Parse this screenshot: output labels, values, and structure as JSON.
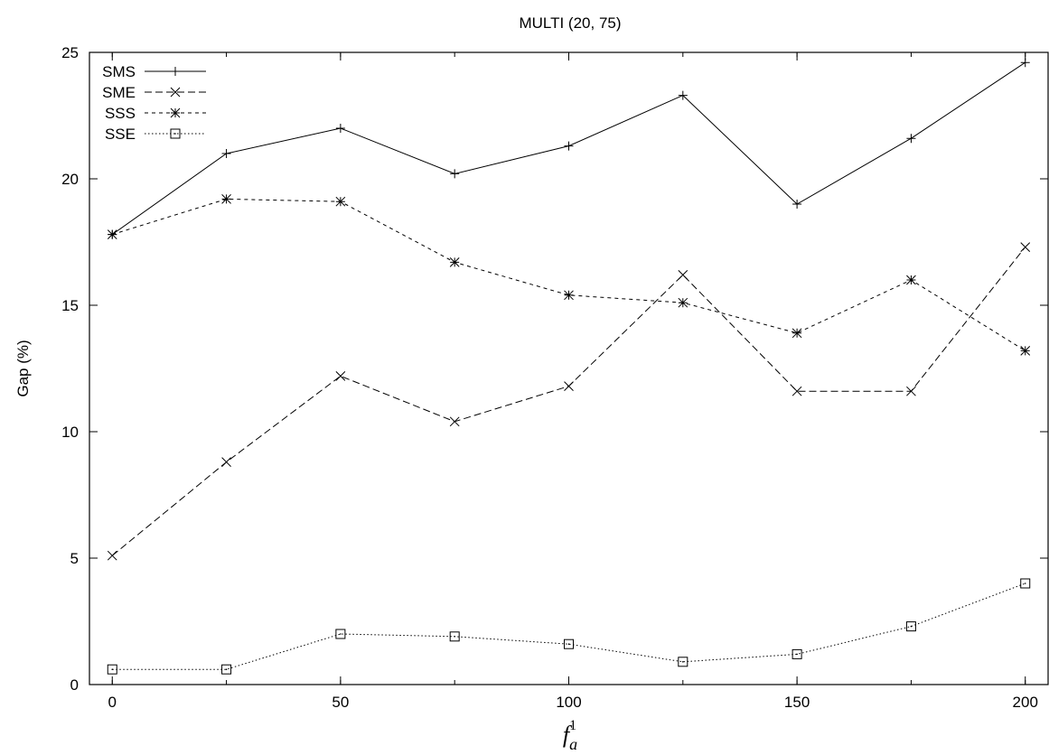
{
  "chart_data": {
    "type": "line",
    "title": "MULTI (20, 75)",
    "xlabel": {
      "base": "f",
      "superscript": "1",
      "subscript": "a"
    },
    "ylabel": "Gap (%)",
    "x": [
      0,
      25,
      50,
      75,
      100,
      125,
      150,
      175,
      200
    ],
    "xlim": [
      -5,
      205
    ],
    "ylim": [
      0,
      25
    ],
    "xticks": [
      "0",
      "50",
      "100",
      "150",
      "200"
    ],
    "yticks": [
      "0",
      "5",
      "10",
      "15",
      "20",
      "25"
    ],
    "grid": false,
    "legend_position": "top-left",
    "series": [
      {
        "name": "SMS",
        "marker": "plus",
        "dash": "solid",
        "values": [
          17.8,
          21.0,
          22.0,
          20.2,
          21.3,
          23.3,
          19.0,
          21.6,
          24.6
        ]
      },
      {
        "name": "SME",
        "marker": "cross",
        "dash": "dashed",
        "values": [
          5.1,
          8.8,
          12.2,
          10.4,
          11.8,
          16.2,
          11.6,
          11.6,
          17.3
        ]
      },
      {
        "name": "SSS",
        "marker": "star",
        "dash": "short-dashed",
        "values": [
          17.8,
          19.2,
          19.1,
          16.7,
          15.4,
          15.1,
          13.9,
          16.0,
          13.2
        ]
      },
      {
        "name": "SSE",
        "marker": "square",
        "dash": "dotted",
        "values": [
          0.6,
          0.6,
          2.0,
          1.9,
          1.6,
          0.9,
          1.2,
          2.3,
          4.0
        ]
      }
    ]
  }
}
